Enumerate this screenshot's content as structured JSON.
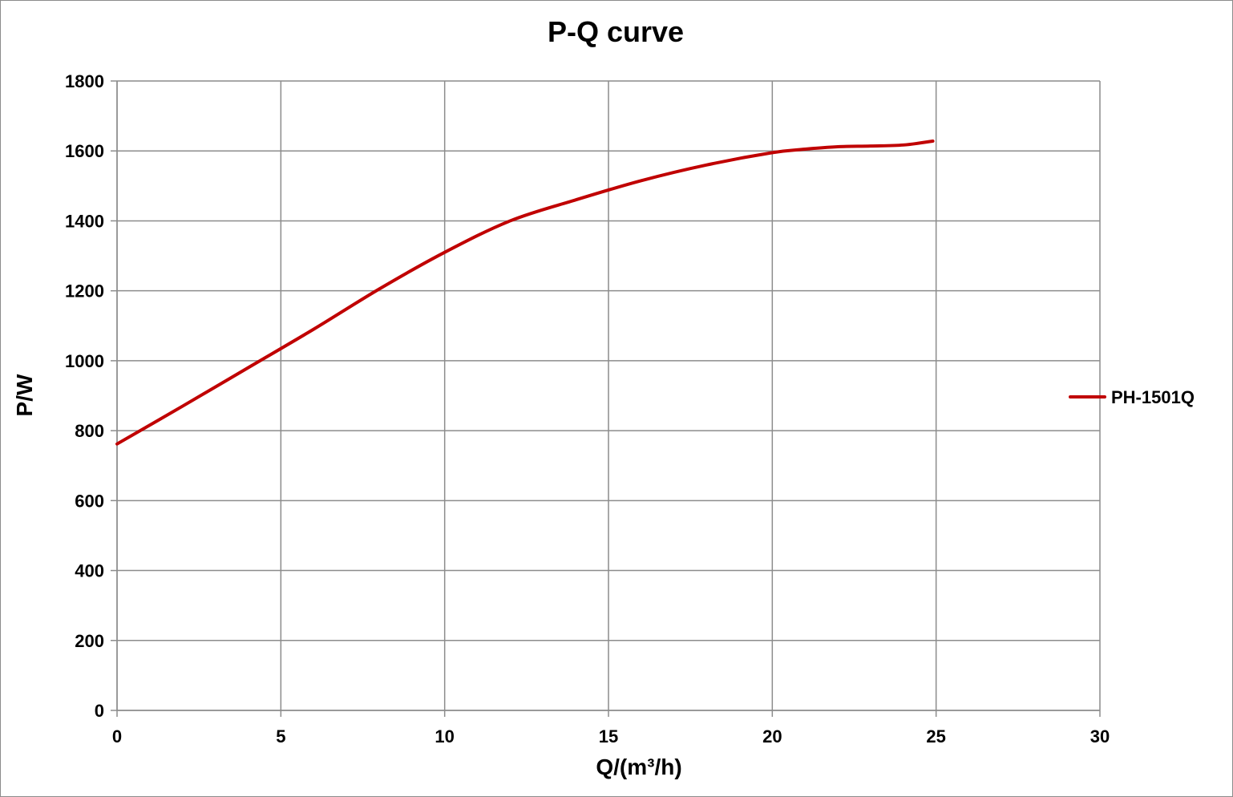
{
  "chart_data": {
    "type": "line",
    "title": "P-Q  curve",
    "xlabel": "Q/(m³/h)",
    "ylabel": "P/W",
    "xlim": [
      0,
      30
    ],
    "ylim": [
      0,
      1800
    ],
    "x_ticks": [
      0,
      5,
      10,
      15,
      20,
      25,
      30
    ],
    "y_ticks": [
      0,
      200,
      400,
      600,
      800,
      1000,
      1200,
      1400,
      1600,
      1800
    ],
    "x_tick_labels": [
      "0",
      "5",
      "10",
      "15",
      "20",
      "25",
      "30"
    ],
    "y_tick_labels": [
      "0",
      "200",
      "400",
      "600",
      "800",
      "1000",
      "1200",
      "1400",
      "1600",
      "1800"
    ],
    "grid": true,
    "legend_position": "right",
    "series": [
      {
        "name": "PH-1501Q",
        "color": "#c00000",
        "x": [
          0,
          2,
          4,
          6,
          8,
          10,
          12,
          14,
          16,
          18,
          20,
          21,
          22,
          23,
          24,
          24.9
        ],
        "y": [
          762,
          870,
          980,
          1090,
          1205,
          1310,
          1400,
          1460,
          1515,
          1560,
          1595,
          1605,
          1612,
          1614,
          1617,
          1628
        ]
      }
    ]
  }
}
